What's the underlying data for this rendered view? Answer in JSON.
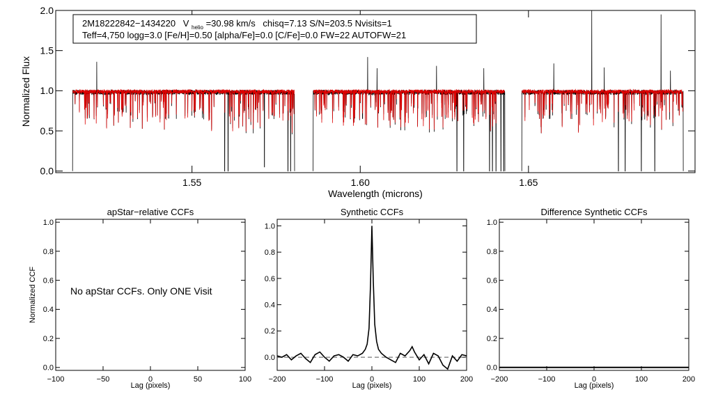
{
  "info_box": {
    "line1_star": "2M18222842−1434220",
    "line1_vhelio_prefix": "V",
    "line1_vhelio_sub": "helio",
    "line1_vhelio_value": "=30.98 km/s",
    "line1_rest": "chisq=7.13  S/N=203.5  Nvisits=1",
    "line2": "Teff=4,750 logg=3.0 [Fe/H]=0.50 [alpha/Fe]=0.0 [C/Fe]=0.0 FW=22 AUTOFW=21"
  },
  "no_ccf_message": "No apStar CCFs.  Only ONE Visit",
  "colors": {
    "observed": "#000000",
    "model": "#dd0000",
    "zero_line": "#555555"
  },
  "chart_data": [
    {
      "type": "line",
      "id": "spectrum",
      "title": "",
      "xlabel": "Wavelength (microns)",
      "ylabel": "Normalized Flux",
      "xlim": [
        1.5095,
        1.6995
      ],
      "ylim": [
        -0.02,
        2.0
      ],
      "xticks": [
        1.55,
        1.6,
        1.65
      ],
      "xtick_labels": [
        "1.55",
        "1.60",
        "1.65"
      ],
      "yticks": [
        0.0,
        0.5,
        1.0,
        1.5,
        2.0
      ],
      "ytick_labels": [
        "0.0",
        "0.5",
        "1.0",
        "1.5",
        "2.0"
      ],
      "chip_ranges": [
        [
          1.5145,
          1.5805
        ],
        [
          1.586,
          1.643
        ],
        [
          1.648,
          1.696
        ]
      ],
      "series": [
        {
          "style": "observed",
          "continuum": 0.98
        },
        {
          "style": "model",
          "continuum": 0.99
        }
      ],
      "emission_spikes": [
        {
          "x": 1.5217,
          "y": 1.36
        },
        {
          "x": 1.6022,
          "y": 1.42
        },
        {
          "x": 1.605,
          "y": 1.28
        },
        {
          "x": 1.6227,
          "y": 1.31
        },
        {
          "x": 1.6367,
          "y": 1.28
        },
        {
          "x": 1.6575,
          "y": 1.34
        },
        {
          "x": 1.6688,
          "y": 2.0
        },
        {
          "x": 1.6725,
          "y": 1.29
        },
        {
          "x": 1.6894,
          "y": 1.95
        },
        {
          "x": 1.6922,
          "y": 1.25
        },
        {
          "x": 1.6462,
          "y": 1.21
        }
      ],
      "telluric_dips": [
        {
          "x": 1.5597,
          "y": 0.0
        },
        {
          "x": 1.5607,
          "y": 0.0
        },
        {
          "x": 1.5715,
          "y": 0.05
        },
        {
          "x": 1.5785,
          "y": 0.0
        },
        {
          "x": 1.5793,
          "y": 0.0
        },
        {
          "x": 1.6287,
          "y": 0.0
        },
        {
          "x": 1.6307,
          "y": 0.0
        },
        {
          "x": 1.6384,
          "y": 0.0
        },
        {
          "x": 1.6393,
          "y": 0.0
        },
        {
          "x": 1.6403,
          "y": 0.0
        },
        {
          "x": 1.6418,
          "y": 0.0
        },
        {
          "x": 1.6426,
          "y": 0.0
        },
        {
          "x": 1.6767,
          "y": 0.0
        },
        {
          "x": 1.6787,
          "y": 0.0
        },
        {
          "x": 1.6835,
          "y": 0.0
        },
        {
          "x": 1.6875,
          "y": 0.0
        }
      ]
    },
    {
      "type": "line",
      "id": "apstar_ccf",
      "title": "apStar−relative CCFs",
      "xlabel": "Lag (pixels)",
      "ylabel": "Normalized CCF",
      "xlim": [
        -100,
        100
      ],
      "ylim": [
        -0.02,
        1.02
      ],
      "xticks": [
        -100,
        -50,
        0,
        50,
        100
      ],
      "xtick_labels": [
        "−100",
        "−50",
        "0",
        "50",
        "100"
      ],
      "yticks": [
        0.0,
        0.2,
        0.4,
        0.6,
        0.8,
        1.0
      ],
      "ytick_labels": [
        "0.0",
        "0.2",
        "0.4",
        "0.6",
        "0.8",
        "1.0"
      ],
      "series": []
    },
    {
      "type": "line",
      "id": "synthetic_ccf",
      "title": "Synthetic CCFs",
      "xlabel": "Lag (pixels)",
      "ylabel": "",
      "xlim": [
        -200,
        200
      ],
      "ylim": [
        -0.1,
        1.05
      ],
      "xticks": [
        -200,
        -100,
        0,
        100,
        200
      ],
      "xtick_labels": [
        "−200",
        "−100",
        "0",
        "100",
        "200"
      ],
      "yticks": [
        0.0,
        0.2,
        0.4,
        0.6,
        0.8,
        1.0
      ],
      "ytick_labels": [
        "0.0",
        "0.2",
        "0.4",
        "0.6",
        "0.8",
        "1.0"
      ],
      "reference_line_y": 0.0,
      "series": [
        {
          "x": [
            -200,
            -190,
            -180,
            -170,
            -160,
            -150,
            -140,
            -130,
            -120,
            -110,
            -100,
            -90,
            -80,
            -70,
            -60,
            -50,
            -40,
            -30,
            -20,
            -14,
            -10,
            -6,
            -3,
            0,
            3,
            6,
            10,
            14,
            20,
            30,
            40,
            50,
            60,
            70,
            80,
            85,
            90,
            100,
            110,
            120,
            130,
            140,
            150,
            160,
            170,
            180,
            190,
            200
          ],
          "y": [
            0.01,
            0.0,
            0.02,
            -0.02,
            0.01,
            0.03,
            -0.01,
            -0.04,
            0.02,
            0.04,
            0.0,
            -0.03,
            0.01,
            0.02,
            0.0,
            -0.03,
            0.02,
            0.01,
            0.03,
            0.06,
            0.1,
            0.22,
            0.55,
            1.0,
            0.58,
            0.25,
            0.12,
            0.06,
            0.03,
            0.0,
            -0.02,
            -0.04,
            0.03,
            0.01,
            0.05,
            0.08,
            0.04,
            -0.02,
            0.02,
            -0.05,
            0.03,
            0.01,
            -0.06,
            -0.09,
            0.01,
            -0.03,
            0.02,
            0.01
          ]
        }
      ]
    },
    {
      "type": "line",
      "id": "difference_ccf",
      "title": "Difference Synthetic CCFs",
      "xlabel": "Lag (pixels)",
      "ylabel": "",
      "xlim": [
        -200,
        200
      ],
      "ylim": [
        -0.02,
        1.02
      ],
      "xticks": [
        -200,
        -100,
        0,
        100,
        200
      ],
      "xtick_labels": [
        "−200",
        "−100",
        "0",
        "100",
        "200"
      ],
      "yticks": [
        0.0,
        0.2,
        0.4,
        0.6,
        0.8,
        1.0
      ],
      "ytick_labels": [
        "0.0",
        "0.2",
        "0.4",
        "0.6",
        "0.8",
        "1.0"
      ],
      "series": [
        {
          "x": [
            -200,
            200
          ],
          "y": [
            0.0,
            0.0
          ]
        }
      ]
    }
  ]
}
